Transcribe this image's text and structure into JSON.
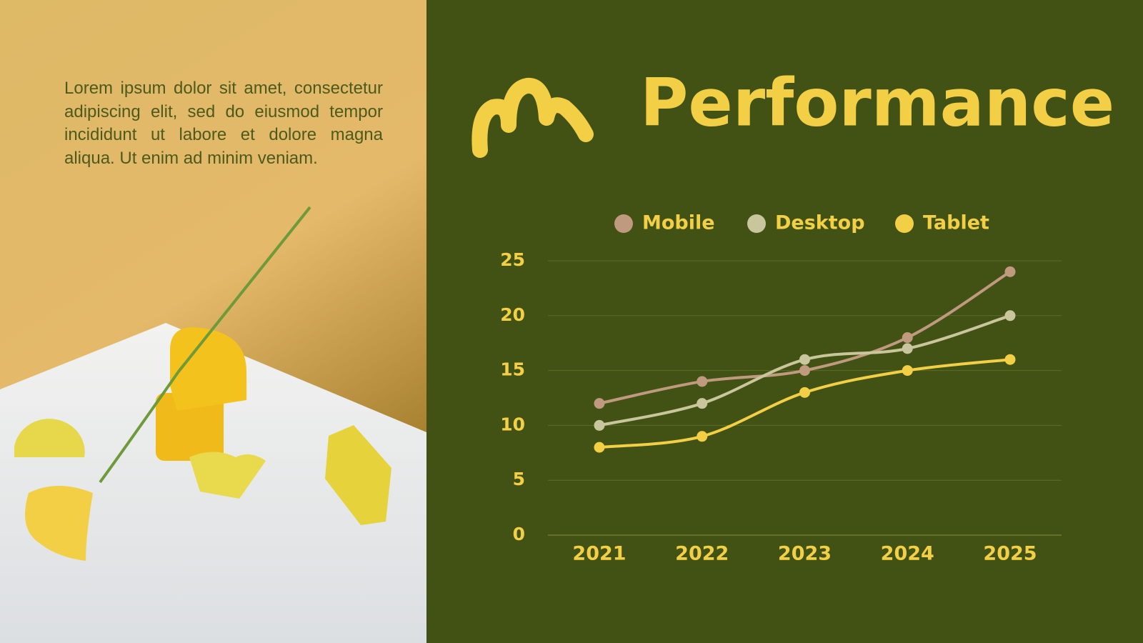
{
  "paragraph": "Lorem ipsum dolor sit amet, consectetur adipiscing elit, sed do eiusmod tempor incididunt ut labore et dolore magna aliqua. Ut enim ad minim veniam.",
  "chart_data": {
    "type": "line",
    "title": "Performance",
    "categories": [
      "2021",
      "2022",
      "2023",
      "2024",
      "2025"
    ],
    "series": [
      {
        "name": "Mobile",
        "color": "#bf9a7f",
        "values": [
          12,
          14,
          15,
          18,
          24
        ]
      },
      {
        "name": "Desktop",
        "color": "#c9c59c",
        "values": [
          10,
          12,
          16,
          17,
          20
        ]
      },
      {
        "name": "Tablet",
        "color": "#f2cf45",
        "values": [
          8,
          9,
          13,
          15,
          16
        ]
      }
    ],
    "ylim": [
      0,
      25
    ],
    "yticks": [
      0,
      5,
      10,
      15,
      20,
      25
    ],
    "grid": true,
    "legend": "top",
    "smooth": true
  }
}
